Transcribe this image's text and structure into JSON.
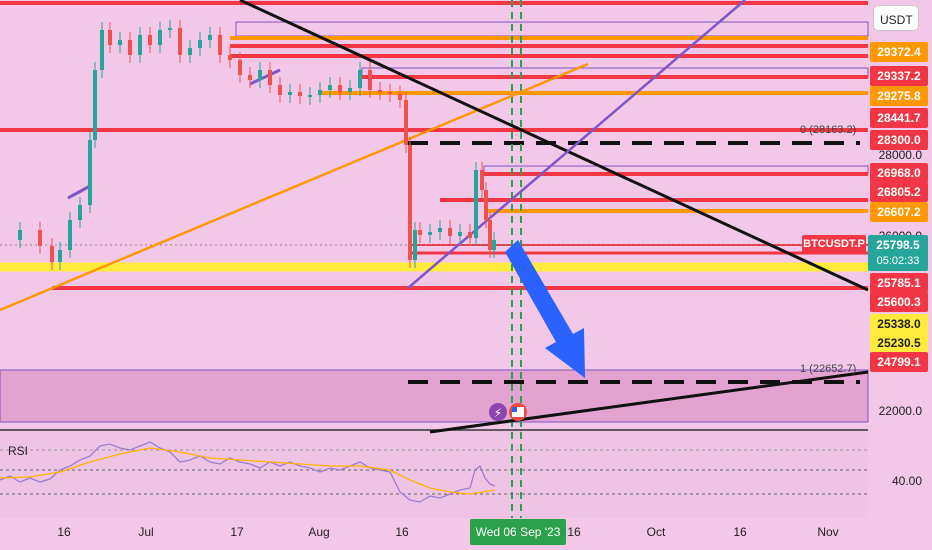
{
  "chart_data": [
    {
      "type": "candlestick",
      "symbol": "BTCUSDT.P",
      "currency": "USDT",
      "last_price": "25798.5",
      "countdown": "05:02:33",
      "date_axis": [
        "16",
        "Jul",
        "17",
        "Aug",
        "16",
        "Wed 06 Sep '23",
        "16",
        "Oct",
        "16",
        "Nov"
      ],
      "price_ticks": [
        "28000.0",
        "26000.0",
        "22000.0"
      ],
      "level_tags": [
        {
          "value": "29372.4",
          "color": "#ff9800"
        },
        {
          "value": "29337.2",
          "color": "#f23645"
        },
        {
          "value": "29275.8",
          "color": "#ff9800"
        },
        {
          "value": "28441.7",
          "color": "#f23645"
        },
        {
          "value": "28300.0",
          "color": "#f23645"
        },
        {
          "value": "26968.0",
          "color": "#f23645"
        },
        {
          "value": "26805.2",
          "color": "#f23645"
        },
        {
          "value": "26607.2",
          "color": "#ff9800"
        },
        {
          "value": "25785.1",
          "color": "#f23645"
        },
        {
          "value": "25600.3",
          "color": "#f23645"
        },
        {
          "value": "25338.0",
          "color": "#ffeb3b"
        },
        {
          "value": "25230.5",
          "color": "#ffeb3b"
        },
        {
          "value": "24799.1",
          "color": "#f23645"
        }
      ],
      "fib_labels": [
        "0 (28163.2)",
        "1 (22652.7)"
      ],
      "colors": {
        "up": "#26a69a",
        "down": "#ef5350",
        "background": "#f3c7e7"
      }
    },
    {
      "type": "line",
      "title": "RSI",
      "y_ticks": [
        "40.00"
      ],
      "colors": {
        "rsi": "#9c7fd1",
        "signal": "#ffb300"
      }
    }
  ]
}
